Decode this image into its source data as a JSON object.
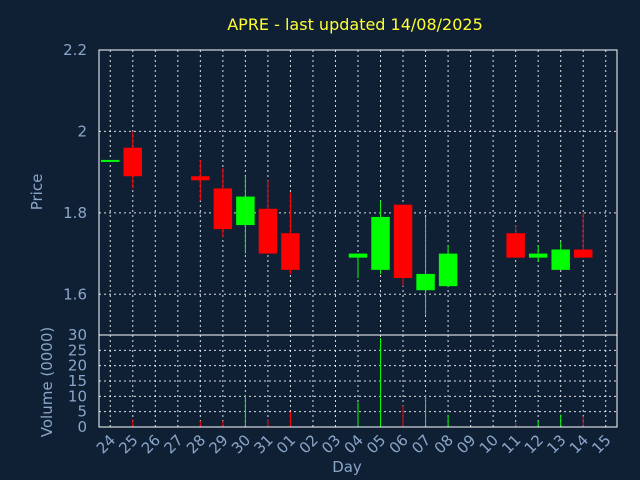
{
  "chart_data": {
    "type": "candlestick",
    "title": "APRE - last updated 14/08/2025",
    "xlabel": "Day",
    "ylabel_price": "Price",
    "ylabel_volume": "Volume (0000)",
    "x_ticks": [
      "24",
      "25",
      "26",
      "27",
      "28",
      "29",
      "30",
      "31",
      "01",
      "02",
      "03",
      "04",
      "05",
      "06",
      "07",
      "08",
      "09",
      "10",
      "11",
      "12",
      "13",
      "14",
      "15"
    ],
    "price_ylim": [
      1.5,
      2.2
    ],
    "price_ticks": [
      "2.2",
      "2",
      "1.8",
      "1.6"
    ],
    "volume_ylim": [
      0,
      30
    ],
    "volume_ticks": [
      "30",
      "25",
      "20",
      "15",
      "10",
      "5",
      "0"
    ],
    "grid": true,
    "up_color": "#00ff00",
    "down_color": "#ff0000",
    "candles": [
      {
        "day": "24",
        "open": 1.93,
        "high": 1.93,
        "low": 1.93,
        "close": 1.93,
        "volume": 0.3
      },
      {
        "day": "25",
        "open": 1.96,
        "high": 2.0,
        "low": 1.86,
        "close": 1.89,
        "volume": 2.5
      },
      {
        "day": "28",
        "open": 1.89,
        "high": 1.93,
        "low": 1.83,
        "close": 1.88,
        "volume": 2.0
      },
      {
        "day": "29",
        "open": 1.86,
        "high": 1.91,
        "low": 1.74,
        "close": 1.76,
        "volume": 2.0
      },
      {
        "day": "30",
        "open": 1.77,
        "high": 1.89,
        "low": 1.7,
        "close": 1.84,
        "volume": 10.5
      },
      {
        "day": "31",
        "open": 1.81,
        "high": 1.88,
        "low": 1.7,
        "close": 1.7,
        "volume": 2.5
      },
      {
        "day": "01",
        "open": 1.75,
        "high": 1.85,
        "low": 1.65,
        "close": 1.66,
        "volume": 5.0
      },
      {
        "day": "04",
        "open": 1.69,
        "high": 1.7,
        "low": 1.64,
        "close": 1.7,
        "volume": 8.0
      },
      {
        "day": "05",
        "open": 1.66,
        "high": 1.83,
        "low": 1.65,
        "close": 1.79,
        "volume": 29.0
      },
      {
        "day": "06",
        "open": 1.82,
        "high": 1.82,
        "low": 1.62,
        "close": 1.64,
        "volume": 7.0
      },
      {
        "day": "07",
        "open": 1.61,
        "high": 1.79,
        "low": 1.55,
        "close": 1.65,
        "volume": 10.5
      },
      {
        "day": "08",
        "open": 1.62,
        "high": 1.72,
        "low": 1.62,
        "close": 1.7,
        "volume": 4.0
      },
      {
        "day": "11",
        "open": 1.75,
        "high": 1.77,
        "low": 1.69,
        "close": 1.69,
        "volume": 1.5
      },
      {
        "day": "12",
        "open": 1.69,
        "high": 1.72,
        "low": 1.68,
        "close": 1.7,
        "volume": 2.0
      },
      {
        "day": "13",
        "open": 1.66,
        "high": 1.73,
        "low": 1.66,
        "close": 1.71,
        "volume": 4.0
      },
      {
        "day": "14",
        "open": 1.71,
        "high": 1.8,
        "low": 1.69,
        "close": 1.69,
        "volume": 3.5
      }
    ]
  }
}
